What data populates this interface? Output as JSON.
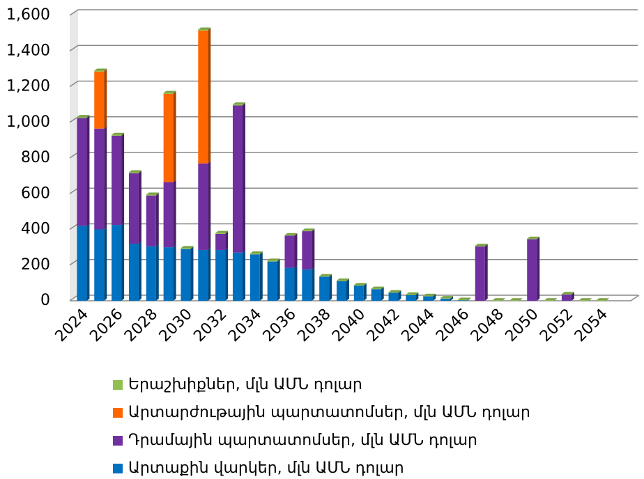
{
  "chart_data": {
    "type": "bar",
    "stacked": true,
    "categories": [
      "2024",
      null,
      "2026",
      null,
      "2028",
      null,
      "2030",
      null,
      "2032",
      null,
      "2034",
      null,
      "2036",
      null,
      "2038",
      null,
      "2040",
      null,
      "2042",
      null,
      "2044",
      null,
      "2046",
      null,
      "2048",
      null,
      "2050",
      null,
      "2052",
      null,
      "2054"
    ],
    "series": [
      {
        "name": "Արտաքին վարկեր, մլն ԱՄՆ դոլար",
        "color": "#0070c0",
        "values": [
          420,
          400,
          425,
          320,
          305,
          300,
          290,
          285,
          285,
          270,
          260,
          220,
          185,
          175,
          135,
          110,
          85,
          65,
          45,
          32,
          25,
          12,
          3,
          0,
          0,
          0,
          0,
          0,
          0,
          0,
          0
        ]
      },
      {
        "name": "Դրամային պարտատոմսեր, մլն ԱՄՆ դոլար",
        "color": "#7030a0",
        "values": [
          605,
          565,
          500,
          395,
          285,
          365,
          0,
          485,
          90,
          825,
          0,
          0,
          180,
          215,
          0,
          0,
          0,
          0,
          0,
          0,
          0,
          0,
          0,
          305,
          0,
          0,
          345,
          0,
          35,
          0,
          0
        ]
      },
      {
        "name": "Արտարժութային պարտատոմսեր, մլն ԱՄՆ դոլար",
        "color": "#ff6600",
        "values": [
          0,
          320,
          0,
          0,
          0,
          495,
          0,
          745,
          0,
          0,
          0,
          0,
          0,
          0,
          0,
          0,
          0,
          0,
          0,
          0,
          0,
          0,
          0,
          0,
          0,
          0,
          0,
          0,
          0,
          0,
          0
        ]
      },
      {
        "name": "Երաշխիքներ, մլն ԱՄՆ դոլար",
        "color": "#92c050",
        "values": [
          5,
          5,
          5,
          5,
          5,
          5,
          5,
          5,
          5,
          5,
          5,
          5,
          3,
          3,
          3,
          3,
          3,
          3,
          3,
          3,
          3,
          3,
          3,
          3,
          3,
          3,
          3,
          3,
          3,
          3,
          3
        ]
      }
    ],
    "ylim": [
      0,
      1600
    ],
    "yticks": [
      0,
      200,
      400,
      600,
      800,
      {
        "value": 1000,
        "label": "1,000"
      },
      {
        "value": 1200,
        "label": "1,200"
      },
      {
        "value": 1400,
        "label": "1,400"
      },
      {
        "value": 1600,
        "label": "1,600"
      }
    ],
    "grid": true,
    "legend": "bottom"
  }
}
